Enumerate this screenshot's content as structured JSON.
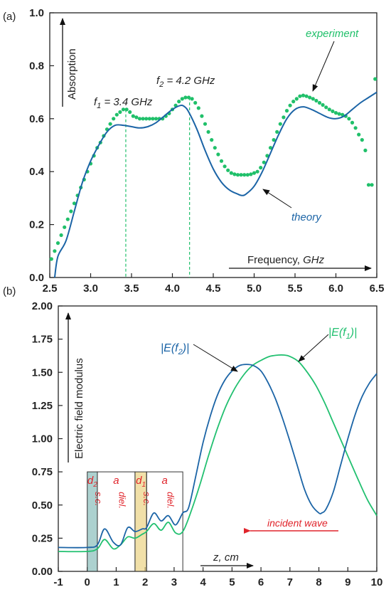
{
  "colors": {
    "theory": "#1b64a6",
    "experiment": "#20c06a",
    "field_f2": "#1b64a6",
    "field_f1": "#22c070",
    "dashed": "#20c06a",
    "red": "#e0242b",
    "sc_fill": "#7fb8b6",
    "sc1_fill": "#e9cf7a"
  },
  "chart_data": [
    {
      "panel": "(a)",
      "type": "line",
      "xlabel": "Frequency, ",
      "xlabel_unit": "GHz",
      "ylabel": "Absorption",
      "xlim": [
        2.5,
        6.5
      ],
      "ylim": [
        0.0,
        1.0
      ],
      "xticks": [
        "2.5",
        "3.0",
        "3.5",
        "4.0",
        "4.5",
        "5.0",
        "5.5",
        "6.0",
        "6.5"
      ],
      "yticks": [
        "0.0",
        "0.2",
        "0.4",
        "0.6",
        "0.8",
        "1.0"
      ],
      "annotations": {
        "f1_label": "f",
        "f1_sub": "1",
        "f1_value": " = 3.4 GHz",
        "f2_label": "f",
        "f2_sub": "2",
        "f2_value": " = 4.2 GHz",
        "experiment_label": "experiment",
        "theory_label": "theory"
      },
      "markers": [
        3.43,
        4.21
      ],
      "series": [
        {
          "name": "theory",
          "style": "line",
          "x": [
            2.56,
            2.6,
            2.7,
            2.8,
            2.9,
            3.0,
            3.1,
            3.2,
            3.3,
            3.4,
            3.5,
            3.6,
            3.7,
            3.8,
            3.9,
            4.0,
            4.1,
            4.15,
            4.2,
            4.3,
            4.4,
            4.5,
            4.6,
            4.7,
            4.8,
            4.85,
            4.9,
            5.0,
            5.1,
            5.2,
            5.3,
            5.4,
            5.5,
            5.6,
            5.7,
            5.8,
            5.9,
            6.0,
            6.1,
            6.2,
            6.3,
            6.4,
            6.5
          ],
          "y": [
            0.0,
            0.08,
            0.14,
            0.25,
            0.36,
            0.44,
            0.5,
            0.55,
            0.575,
            0.575,
            0.57,
            0.565,
            0.57,
            0.585,
            0.61,
            0.635,
            0.65,
            0.645,
            0.625,
            0.56,
            0.48,
            0.41,
            0.36,
            0.33,
            0.315,
            0.31,
            0.315,
            0.345,
            0.4,
            0.47,
            0.54,
            0.6,
            0.635,
            0.645,
            0.635,
            0.62,
            0.605,
            0.6,
            0.61,
            0.635,
            0.66,
            0.68,
            0.7
          ]
        },
        {
          "name": "experiment",
          "style": "dots",
          "x": [
            2.52,
            2.56,
            2.6,
            2.64,
            2.68,
            2.72,
            2.76,
            2.8,
            2.84,
            2.88,
            2.92,
            2.96,
            3.0,
            3.04,
            3.08,
            3.12,
            3.16,
            3.2,
            3.24,
            3.28,
            3.32,
            3.36,
            3.4,
            3.44,
            3.48,
            3.52,
            3.56,
            3.6,
            3.64,
            3.68,
            3.72,
            3.76,
            3.8,
            3.84,
            3.88,
            3.92,
            3.96,
            4.0,
            4.04,
            4.08,
            4.12,
            4.16,
            4.2,
            4.24,
            4.28,
            4.32,
            4.36,
            4.4,
            4.44,
            4.48,
            4.52,
            4.56,
            4.6,
            4.64,
            4.68,
            4.72,
            4.76,
            4.8,
            4.84,
            4.88,
            4.92,
            4.96,
            5.0,
            5.04,
            5.08,
            5.12,
            5.16,
            5.2,
            5.24,
            5.28,
            5.32,
            5.36,
            5.4,
            5.44,
            5.48,
            5.52,
            5.56,
            5.6,
            5.64,
            5.68,
            5.72,
            5.76,
            5.8,
            5.84,
            5.88,
            5.92,
            5.96,
            6.0,
            6.04,
            6.08,
            6.12,
            6.16,
            6.2,
            6.24,
            6.28,
            6.32,
            6.36,
            6.4,
            6.44,
            6.48
          ],
          "y": [
            0.07,
            0.1,
            0.13,
            0.16,
            0.19,
            0.22,
            0.25,
            0.28,
            0.31,
            0.34,
            0.37,
            0.4,
            0.43,
            0.46,
            0.49,
            0.51,
            0.535,
            0.56,
            0.58,
            0.6,
            0.615,
            0.625,
            0.635,
            0.635,
            0.625,
            0.61,
            0.605,
            0.6,
            0.6,
            0.6,
            0.6,
            0.6,
            0.6,
            0.6,
            0.6,
            0.61,
            0.62,
            0.635,
            0.65,
            0.665,
            0.675,
            0.68,
            0.68,
            0.675,
            0.66,
            0.64,
            0.61,
            0.58,
            0.55,
            0.52,
            0.49,
            0.465,
            0.44,
            0.42,
            0.405,
            0.395,
            0.39,
            0.388,
            0.388,
            0.388,
            0.388,
            0.39,
            0.395,
            0.4,
            0.415,
            0.435,
            0.46,
            0.49,
            0.52,
            0.55,
            0.58,
            0.605,
            0.63,
            0.65,
            0.665,
            0.675,
            0.685,
            0.688,
            0.685,
            0.68,
            0.675,
            0.668,
            0.66,
            0.652,
            0.643,
            0.635,
            0.628,
            0.622,
            0.618,
            0.615,
            0.61,
            0.6,
            0.585,
            0.565,
            0.54,
            0.52,
            0.48,
            0.35,
            0.35,
            0.75
          ]
        }
      ]
    },
    {
      "panel": "(b)",
      "type": "line",
      "xlabel": "z, cm",
      "ylabel": "Electric field modulus",
      "xlim": [
        -1,
        10
      ],
      "ylim": [
        0.0,
        2.0
      ],
      "xticks": [
        "-1",
        "0",
        "1",
        "2",
        "3",
        "4",
        "5",
        "6",
        "7",
        "8",
        "9",
        "10"
      ],
      "yticks": [
        "0.00",
        "0.25",
        "0.50",
        "0.75",
        "1.00",
        "1.25",
        "1.50",
        "1.75",
        "2.00"
      ],
      "annotations": {
        "e_f2_label": "|E(f",
        "e_f2_sub": "2",
        "e_f2_end": ")|",
        "e_f1_label": "|E(f",
        "e_f1_sub": "1",
        "e_f1_end": ")|",
        "incident_wave": "incident wave"
      },
      "layers": [
        {
          "top": "d",
          "top_sub": "2",
          "mid": "s.c.",
          "from": 0.0,
          "to": 0.35,
          "fill": "sc"
        },
        {
          "top": "a",
          "mid": "diel.",
          "from": 0.35,
          "to": 1.65,
          "fill": "none"
        },
        {
          "top": "d",
          "top_sub": "1",
          "mid": "s.c.",
          "from": 1.65,
          "to": 2.05,
          "fill": "sc1"
        },
        {
          "top": "a",
          "mid": "diel.",
          "from": 2.05,
          "to": 3.3,
          "fill": "none"
        }
      ],
      "series": [
        {
          "name": "|E(f2)|",
          "x": [
            -1.0,
            0.0,
            0.35,
            0.6,
            0.9,
            1.15,
            1.4,
            1.65,
            1.9,
            2.05,
            2.3,
            2.55,
            2.8,
            3.05,
            3.3,
            3.5,
            3.75,
            4.0,
            4.25,
            4.5,
            4.75,
            5.0,
            5.25,
            5.5,
            5.75,
            6.0,
            6.25,
            6.5,
            6.75,
            7.0,
            7.25,
            7.5,
            7.75,
            8.0,
            8.1,
            8.25,
            8.5,
            8.75,
            9.0,
            9.25,
            9.5,
            9.75,
            10.0
          ],
          "y": [
            0.18,
            0.18,
            0.2,
            0.32,
            0.22,
            0.2,
            0.33,
            0.3,
            0.32,
            0.33,
            0.44,
            0.38,
            0.42,
            0.35,
            0.44,
            0.48,
            0.72,
            0.97,
            1.17,
            1.33,
            1.44,
            1.51,
            1.55,
            1.56,
            1.55,
            1.51,
            1.42,
            1.3,
            1.15,
            0.98,
            0.8,
            0.62,
            0.5,
            0.44,
            0.44,
            0.47,
            0.6,
            0.8,
            1.0,
            1.18,
            1.32,
            1.42,
            1.49
          ]
        },
        {
          "name": "|E(f1)|",
          "x": [
            -1.0,
            0.0,
            0.35,
            0.6,
            0.9,
            1.15,
            1.4,
            1.65,
            1.9,
            2.05,
            2.3,
            2.55,
            2.8,
            3.05,
            3.3,
            3.6,
            3.9,
            4.2,
            4.5,
            4.8,
            5.1,
            5.4,
            5.7,
            6.0,
            6.3,
            6.6,
            6.8,
            7.0,
            7.3,
            7.6,
            7.9,
            8.2,
            8.5,
            8.8,
            9.1,
            9.4,
            9.7,
            10.0
          ],
          "y": [
            0.15,
            0.15,
            0.17,
            0.24,
            0.17,
            0.2,
            0.26,
            0.25,
            0.28,
            0.3,
            0.36,
            0.31,
            0.37,
            0.29,
            0.3,
            0.46,
            0.66,
            0.88,
            1.08,
            1.25,
            1.38,
            1.48,
            1.55,
            1.59,
            1.62,
            1.63,
            1.63,
            1.62,
            1.58,
            1.5,
            1.4,
            1.27,
            1.12,
            0.97,
            0.82,
            0.67,
            0.53,
            0.42
          ]
        }
      ]
    }
  ]
}
